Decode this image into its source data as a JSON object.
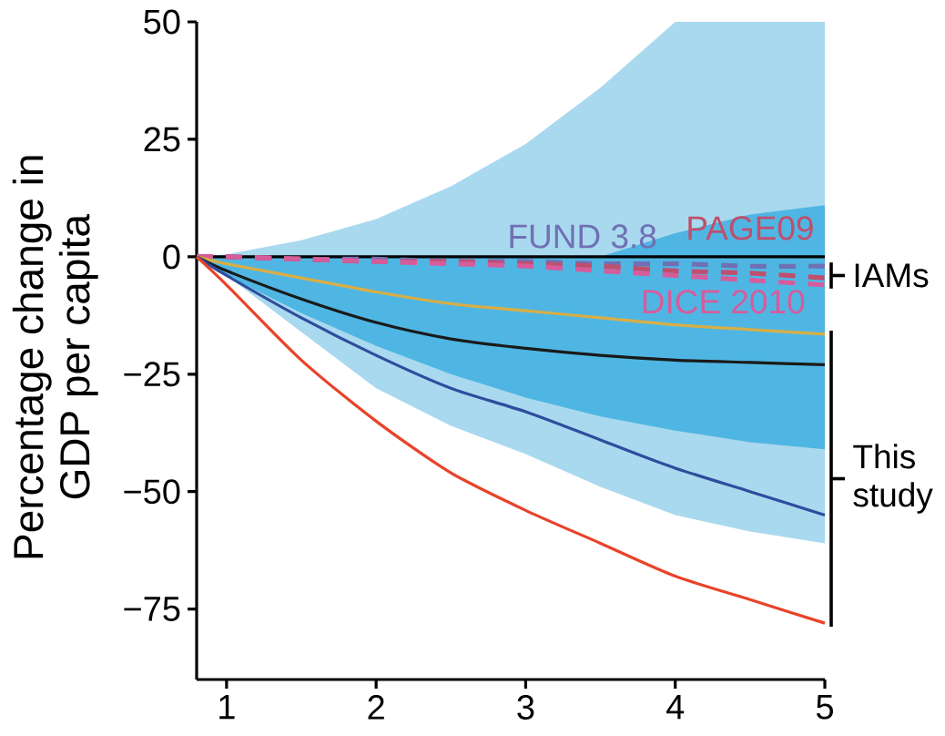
{
  "chart_data": {
    "type": "line",
    "ylabel": "Percentage change in GDP per capita",
    "x": [
      0.8,
      1,
      1.5,
      2,
      2.5,
      3,
      3.5,
      4,
      4.5,
      5
    ],
    "xlim": [
      0.8,
      5
    ],
    "xticks": [
      1,
      2,
      3,
      4,
      5
    ],
    "ylim": [
      -90,
      50
    ],
    "yticks": [
      {
        "value": -75,
        "label": "−75"
      },
      {
        "value": -50,
        "label": "−50"
      },
      {
        "value": -25,
        "label": "−25"
      },
      0,
      25,
      50
    ],
    "series": [
      {
        "type": "area",
        "color": "#a9d9ee",
        "values": [
          0,
          0.5,
          3.5,
          8,
          15,
          24,
          36,
          50,
          50,
          50
        ]
      },
      {
        "type": "area",
        "color": "#a9d9ee",
        "values": [
          0,
          -4,
          -16,
          -28,
          -36,
          -42,
          -49,
          -55,
          -58.5,
          -61
        ]
      },
      {
        "type": "area",
        "color": "#4fb6e3",
        "values": [
          0,
          0,
          0,
          0,
          0,
          0,
          0,
          5,
          9,
          11
        ]
      },
      {
        "type": "area",
        "color": "#4fb6e3",
        "values": [
          0,
          -4,
          -12,
          -19,
          -25,
          -30,
          -34,
          -37,
          -39.5,
          -41
        ]
      },
      {
        "name": "FUND 3.8",
        "color": "#7070b4",
        "line_style": "dashed",
        "values": [
          0,
          0,
          -0.5,
          -0.5,
          -1,
          -1,
          -1.5,
          -1.5,
          -2,
          -2
        ]
      },
      {
        "name": "PAGE09",
        "color": "#c04f6e",
        "line_style": "dashed",
        "values": [
          0,
          0,
          -0.5,
          -1,
          -1,
          -1.5,
          -2,
          -3,
          -3.5,
          -4.5
        ]
      },
      {
        "name": "DICE 2010",
        "color": "#d65c9c",
        "line_style": "dashed",
        "values": [
          0,
          0,
          -0.5,
          -1,
          -1.5,
          -2,
          -3,
          -4,
          -5,
          -6
        ]
      },
      {
        "color": "#d8ae45",
        "values": [
          0,
          -1.5,
          -4.5,
          -7.5,
          -10,
          -11.5,
          -13,
          -14.5,
          -15.5,
          -16.5
        ]
      },
      {
        "color": "#1a1a1a",
        "values": [
          0,
          -3,
          -9,
          -14,
          -17.5,
          -19.5,
          -21,
          -22,
          -22.5,
          -23
        ]
      },
      {
        "color": "#2e4d9e",
        "values": [
          0,
          -4,
          -13,
          -21,
          -28,
          -33,
          -39,
          -45,
          -50,
          -55
        ]
      },
      {
        "color": "#e8432a",
        "values": [
          0,
          -6,
          -22,
          -35,
          -46,
          -54,
          -61,
          -68,
          -73,
          -78
        ]
      }
    ],
    "ref_lines": [
      {
        "axis": "y",
        "value": 0,
        "color": "#000000"
      }
    ],
    "annotations": [
      "IAMs",
      "This study"
    ]
  }
}
